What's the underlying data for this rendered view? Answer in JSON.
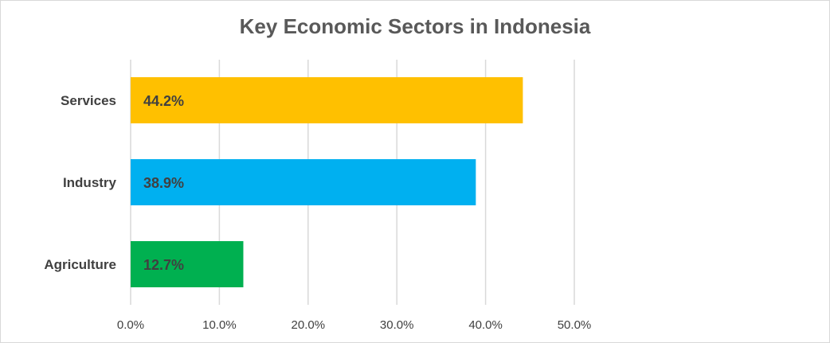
{
  "chart_data": {
    "type": "bar",
    "orientation": "horizontal",
    "title": "Key Economic Sectors in Indonesia",
    "xlabel": "",
    "ylabel": "",
    "categories": [
      "Services",
      "Industry",
      "Agriculture"
    ],
    "values": [
      44.2,
      38.9,
      12.7
    ],
    "data_labels": [
      "44.2%",
      "38.9%",
      "12.7%"
    ],
    "colors": [
      "#FFC000",
      "#00B0F0",
      "#00B050"
    ],
    "xlim": [
      0,
      50
    ],
    "ticks": [
      0,
      10,
      20,
      30,
      40,
      50
    ],
    "tick_labels": [
      "0.0%",
      "10.0%",
      "20.0%",
      "30.0%",
      "40.0%",
      "50.0%"
    ],
    "grid": true,
    "gridline_color": "#d9d9d9",
    "legend": "none"
  }
}
